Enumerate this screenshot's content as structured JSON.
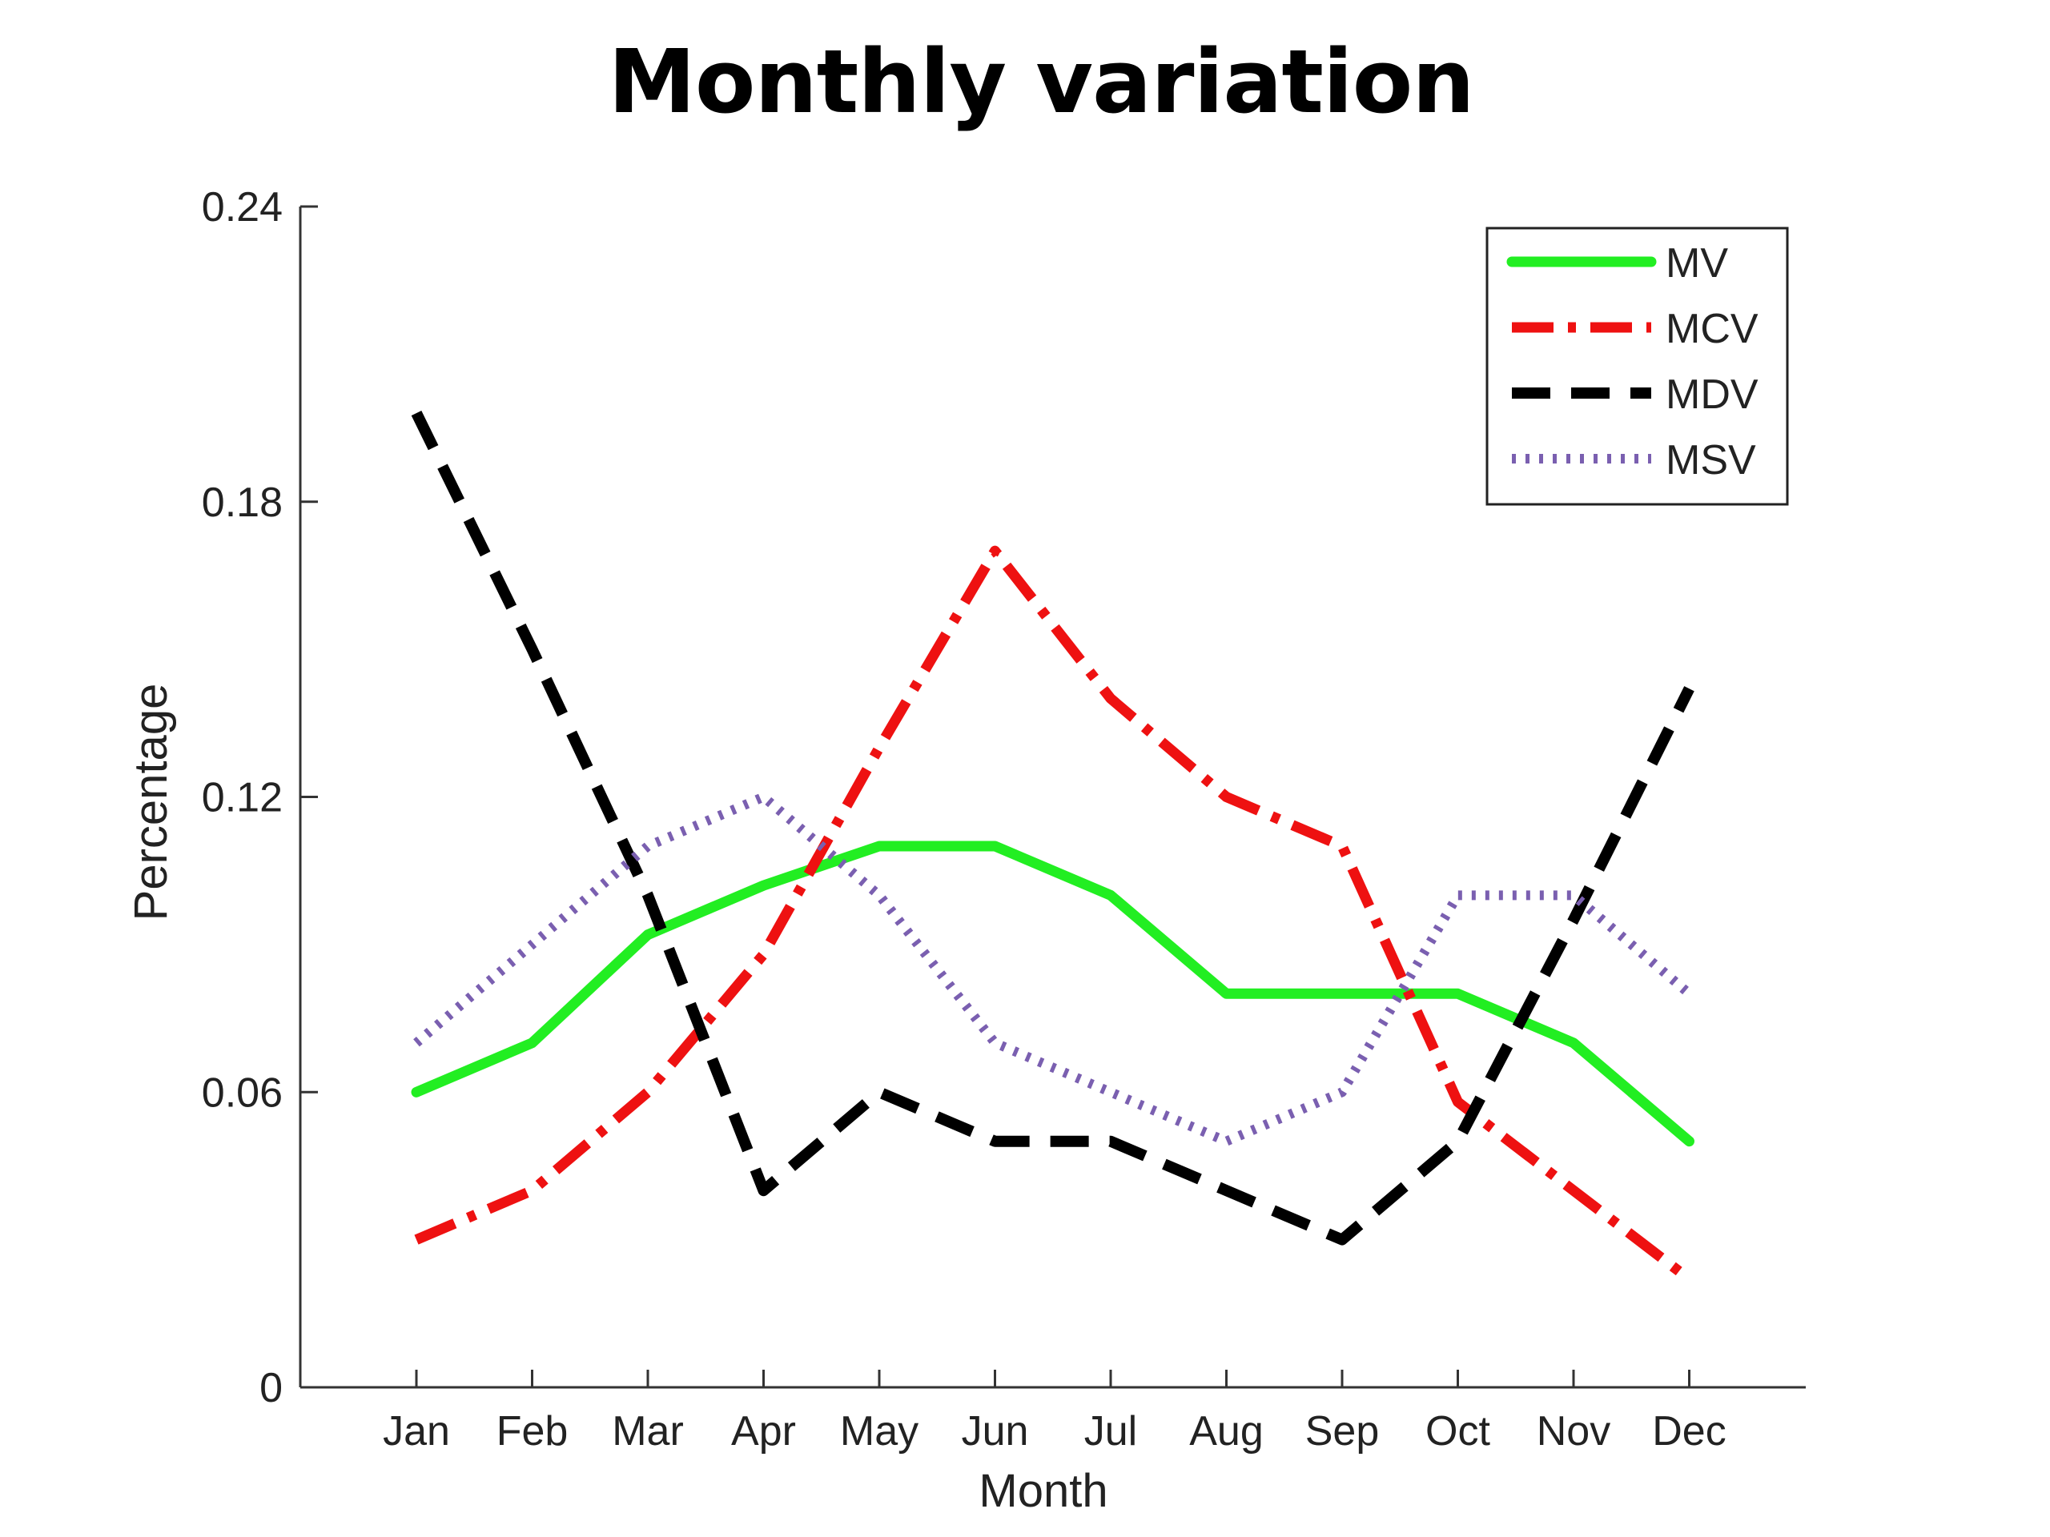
{
  "chart_data": {
    "type": "line",
    "title": "Monthly variation",
    "xlabel": "Month",
    "ylabel": "Percentage",
    "categories": [
      "Jan",
      "Feb",
      "Mar",
      "Apr",
      "May",
      "Jun",
      "Jul",
      "Aug",
      "Sep",
      "Oct",
      "Nov",
      "Dec"
    ],
    "ylim": [
      0,
      0.24
    ],
    "yticks": [
      "0",
      "0.06",
      "0.12",
      "0.18",
      "0.24"
    ],
    "ytick_values": [
      0,
      0.06,
      0.12,
      0.18,
      0.24
    ],
    "grid": false,
    "legend_position": "top-right",
    "series": [
      {
        "name": "MV",
        "color": "#22ee22",
        "style": "solid",
        "values": [
          0.06,
          0.07,
          0.092,
          0.102,
          0.11,
          0.11,
          0.1,
          0.08,
          0.08,
          0.08,
          0.07,
          0.05
        ]
      },
      {
        "name": "MCV",
        "color": "#ee1111",
        "style": "dashdot",
        "values": [
          0.03,
          0.04,
          0.06,
          0.088,
          0.13,
          0.17,
          0.14,
          0.12,
          0.11,
          0.058,
          0.04,
          0.022
        ]
      },
      {
        "name": "MDV",
        "color": "#000000",
        "style": "dashed",
        "values": [
          0.198,
          0.15,
          0.1,
          0.04,
          0.06,
          0.05,
          0.05,
          0.04,
          0.03,
          0.05,
          0.095,
          0.142
        ]
      },
      {
        "name": "MSV",
        "color": "#7a5fb0",
        "style": "dotted",
        "values": [
          0.07,
          0.09,
          0.11,
          0.12,
          0.1,
          0.07,
          0.06,
          0.05,
          0.06,
          0.1,
          0.1,
          0.08
        ]
      }
    ]
  }
}
